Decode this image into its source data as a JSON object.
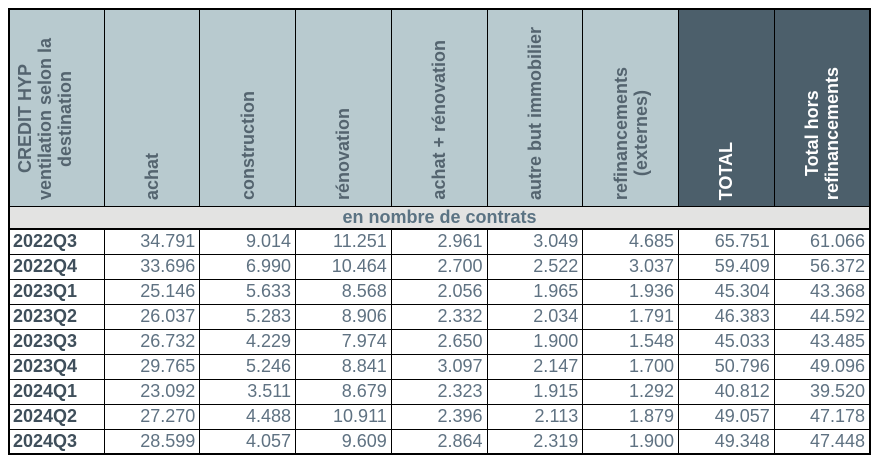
{
  "chart_data": {
    "type": "table",
    "title": "CREDIT HYP ventilation selon la destination",
    "unit_label": "en nombre de contrats",
    "columns": [
      "achat",
      "construction",
      "rénovation",
      "achat + rénovation",
      "autre but immobilier",
      "refinancements (externes)",
      "TOTAL",
      "Total hors refinancements"
    ],
    "rows": [
      {
        "period": "2022Q3",
        "values": [
          34791,
          9014,
          11251,
          2961,
          3049,
          4685,
          65751,
          61066
        ]
      },
      {
        "period": "2022Q4",
        "values": [
          33696,
          6990,
          10464,
          2700,
          2522,
          3037,
          59409,
          56372
        ]
      },
      {
        "period": "2023Q1",
        "values": [
          25146,
          5633,
          8568,
          2056,
          1965,
          1936,
          45304,
          43368
        ]
      },
      {
        "period": "2023Q2",
        "values": [
          26037,
          5283,
          8906,
          2332,
          2034,
          1791,
          46383,
          44592
        ]
      },
      {
        "period": "2023Q3",
        "values": [
          26732,
          4229,
          7974,
          2650,
          1900,
          1548,
          45033,
          43485
        ]
      },
      {
        "period": "2023Q4",
        "values": [
          29765,
          5246,
          8841,
          3097,
          2147,
          1700,
          50796,
          49096
        ]
      },
      {
        "period": "2024Q1",
        "values": [
          23092,
          3511,
          8679,
          2323,
          1915,
          1292,
          40812,
          39520
        ]
      },
      {
        "period": "2024Q2",
        "values": [
          27270,
          4488,
          10911,
          2396,
          2113,
          1879,
          49057,
          47178
        ]
      },
      {
        "period": "2024Q3",
        "values": [
          28599,
          4057,
          9609,
          2864,
          2319,
          1900,
          49348,
          47448
        ]
      }
    ]
  },
  "table": {
    "corner_header": "CREDIT HYP\nventilation selon la\ndestination",
    "section_header": "en nombre de contrats",
    "columns": [
      {
        "label": "achat",
        "variant": "light"
      },
      {
        "label": "construction",
        "variant": "light"
      },
      {
        "label": "rénovation",
        "variant": "light"
      },
      {
        "label": "achat + rénovation",
        "variant": "light"
      },
      {
        "label": "autre but immobilier",
        "variant": "light"
      },
      {
        "label": "refinancements\n(externes)",
        "variant": "light"
      },
      {
        "label": "TOTAL",
        "variant": "dark"
      },
      {
        "label": "Total hors\nrefinancements",
        "variant": "dark"
      }
    ],
    "rows": [
      {
        "label": "2022Q3",
        "values": [
          "34.791",
          "9.014",
          "11.251",
          "2.961",
          "3.049",
          "4.685",
          "65.751",
          "61.066"
        ]
      },
      {
        "label": "2022Q4",
        "values": [
          "33.696",
          "6.990",
          "10.464",
          "2.700",
          "2.522",
          "3.037",
          "59.409",
          "56.372"
        ]
      },
      {
        "label": "2023Q1",
        "values": [
          "25.146",
          "5.633",
          "8.568",
          "2.056",
          "1.965",
          "1.936",
          "45.304",
          "43.368"
        ]
      },
      {
        "label": "2023Q2",
        "values": [
          "26.037",
          "5.283",
          "8.906",
          "2.332",
          "2.034",
          "1.791",
          "46.383",
          "44.592"
        ]
      },
      {
        "label": "2023Q3",
        "values": [
          "26.732",
          "4.229",
          "7.974",
          "2.650",
          "1.900",
          "1.548",
          "45.033",
          "43.485"
        ]
      },
      {
        "label": "2023Q4",
        "values": [
          "29.765",
          "5.246",
          "8.841",
          "3.097",
          "2.147",
          "1.700",
          "50.796",
          "49.096"
        ]
      },
      {
        "label": "2024Q1",
        "values": [
          "23.092",
          "3.511",
          "8.679",
          "2.323",
          "1.915",
          "1.292",
          "40.812",
          "39.520"
        ]
      },
      {
        "label": "2024Q2",
        "values": [
          "27.270",
          "4.488",
          "10.911",
          "2.396",
          "2.113",
          "1.879",
          "49.057",
          "47.178"
        ]
      },
      {
        "label": "2024Q3",
        "values": [
          "28.599",
          "4.057",
          "9.609",
          "2.864",
          "2.319",
          "1.900",
          "49.348",
          "47.448"
        ]
      }
    ]
  },
  "colors": {
    "header_light_bg": "#b8cacf",
    "header_dark_bg": "#4c5f6b",
    "header_text": "#54646f",
    "header_dark_text": "#ffffff",
    "band_bg": "#e3e3e2",
    "band_text": "#5b7383",
    "row_label_text": "#3f4f5b",
    "value_text": "#5f7282",
    "border": "#000000"
  }
}
